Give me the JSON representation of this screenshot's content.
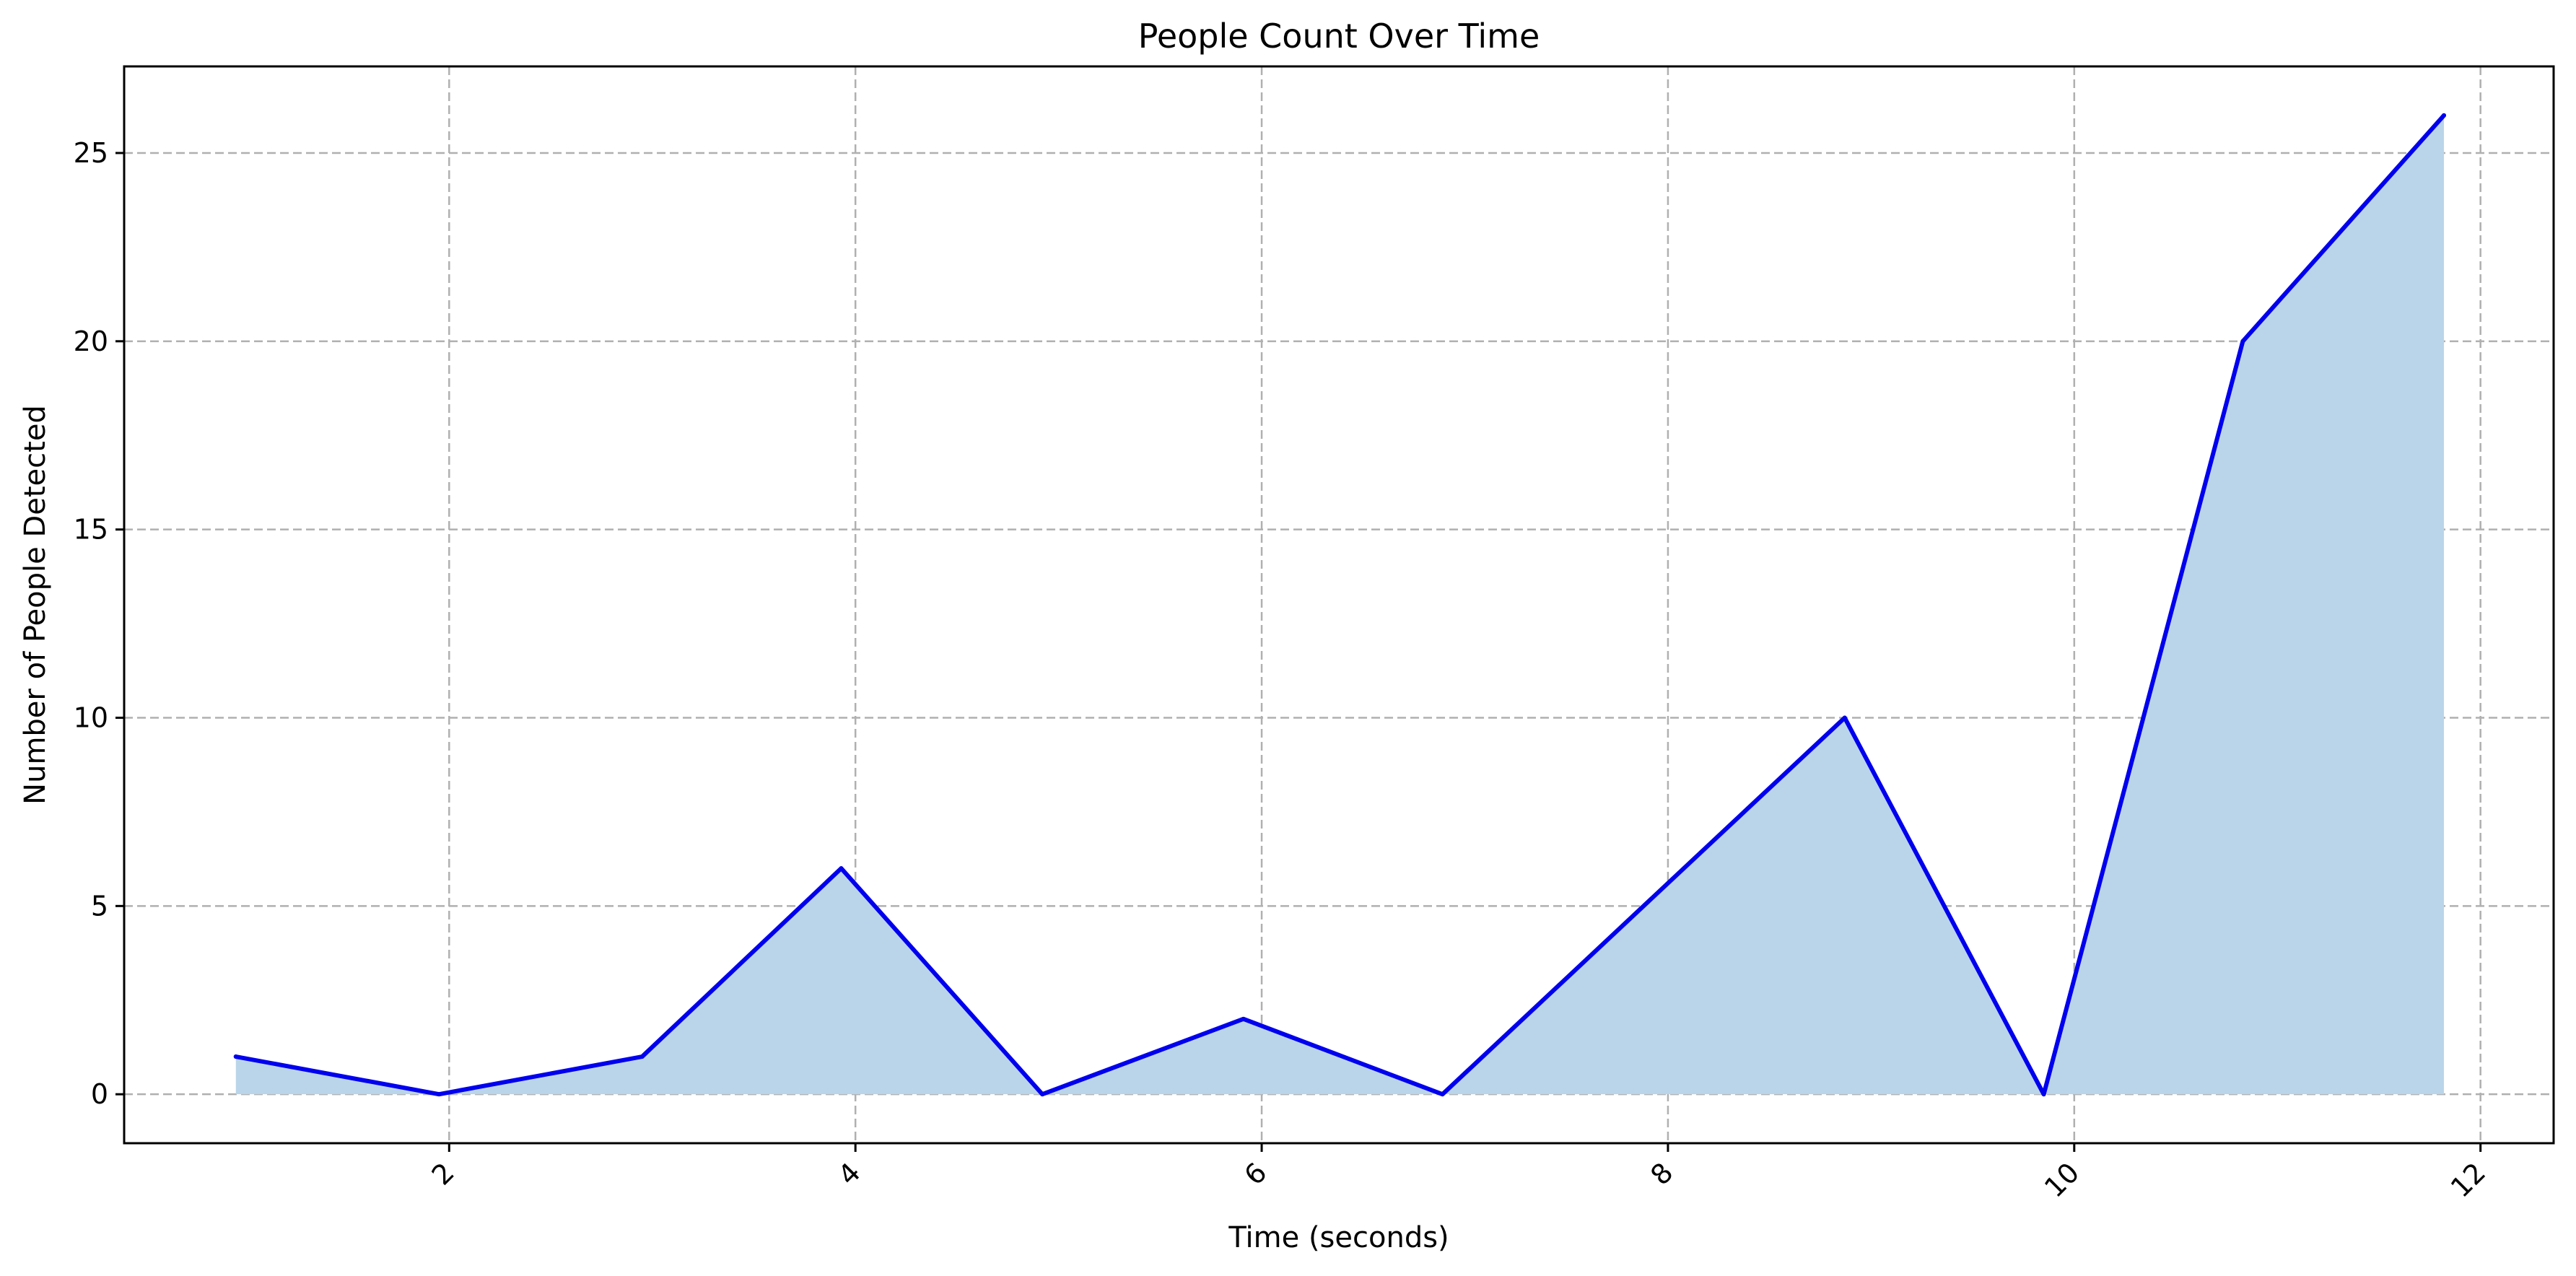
{
  "chart_data": {
    "type": "area",
    "title": "People Count Over Time",
    "xlabel": "Time (seconds)",
    "ylabel": "Number of People Detected",
    "x": [
      0.95,
      1.95,
      2.95,
      3.93,
      4.92,
      5.91,
      6.89,
      8.87,
      9.85,
      10.83,
      11.82
    ],
    "series": [
      {
        "values": [
          1,
          0,
          1,
          6,
          0,
          2,
          0,
          10,
          0,
          20,
          26
        ]
      }
    ],
    "xlim": [
      0.4,
      12.36
    ],
    "ylim": [
      -1.3,
      27.3
    ],
    "xticks": [
      2,
      4,
      6,
      8,
      10,
      12
    ],
    "yticks": [
      0,
      5,
      10,
      15,
      20,
      25
    ],
    "xtick_rotation": 45,
    "grid": true,
    "line_color": "#0000ee",
    "fill_color": "#bad5e9"
  }
}
